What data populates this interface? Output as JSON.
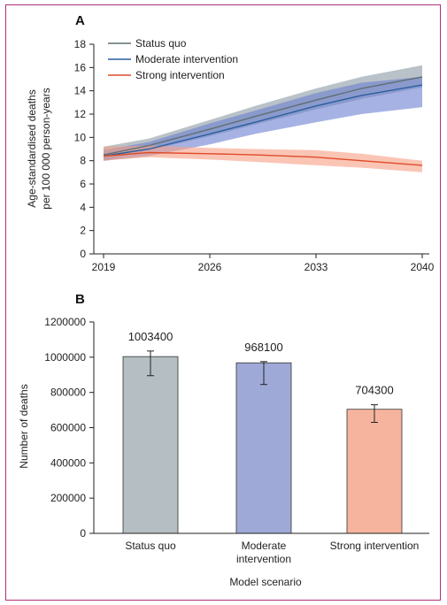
{
  "chart_data": [
    {
      "panel": "A",
      "type": "line",
      "xlabel": "",
      "ylabel": [
        "Age-standardised deaths",
        "per 100 000 person-years"
      ],
      "x_ticks": [
        "2019",
        "2026",
        "2033",
        "2040"
      ],
      "y_ticks": [
        "0",
        "2",
        "4",
        "6",
        "8",
        "10",
        "12",
        "14",
        "16",
        "18"
      ],
      "xlim": [
        2019,
        2040
      ],
      "ylim": [
        0,
        18
      ],
      "grid": false,
      "legend_position": "top-left",
      "x": [
        2019,
        2022,
        2026,
        2029,
        2033,
        2036,
        2040
      ],
      "series": [
        {
          "name": "Status quo",
          "color": "#5f6f6f",
          "band_color": "#8a9aa3",
          "values": [
            8.5,
            9.3,
            10.7,
            11.8,
            13.2,
            14.2,
            15.2
          ],
          "lower": [
            8.0,
            8.9,
            10.1,
            11.1,
            12.4,
            13.3,
            14.3
          ],
          "upper": [
            9.2,
            9.9,
            11.5,
            12.7,
            14.2,
            15.2,
            16.2
          ]
        },
        {
          "name": "Moderate intervention",
          "color": "#2a5f9e",
          "band_color": "#6a7fd0",
          "values": [
            8.4,
            9.0,
            10.3,
            11.3,
            12.7,
            13.6,
            14.5
          ],
          "lower": [
            8.0,
            8.4,
            9.4,
            10.3,
            11.3,
            12.0,
            12.6
          ],
          "upper": [
            8.9,
            9.6,
            11.2,
            12.3,
            13.8,
            14.7,
            15.2
          ]
        },
        {
          "name": "Strong intervention",
          "color": "#e04b2a",
          "band_color": "#f79e84",
          "values": [
            8.4,
            8.7,
            8.6,
            8.5,
            8.3,
            8.0,
            7.6
          ],
          "lower": [
            8.0,
            8.3,
            8.1,
            7.9,
            7.6,
            7.4,
            7.0
          ],
          "upper": [
            9.2,
            9.3,
            9.1,
            9.0,
            8.9,
            8.6,
            8.0
          ]
        }
      ]
    },
    {
      "panel": "B",
      "type": "bar",
      "xlabel": "Model scenario",
      "ylabel": "Number of deaths",
      "categories": [
        [
          "Status quo"
        ],
        [
          "Moderate",
          "intervention"
        ],
        [
          "Strong intervention"
        ]
      ],
      "values": [
        1003400,
        968100,
        704300
      ],
      "value_labels": [
        "1003400",
        "968100",
        "704300"
      ],
      "error_lower": [
        895000,
        845000,
        630000
      ],
      "error_upper": [
        1035000,
        975000,
        730000
      ],
      "colors": [
        "#b5bec2",
        "#9fa9d7",
        "#f6b49f"
      ],
      "y_ticks": [
        "0",
        "200000",
        "400000",
        "600000",
        "800000",
        "1000000",
        "1200000"
      ],
      "ylim": [
        0,
        1200000
      ],
      "grid": false
    }
  ]
}
